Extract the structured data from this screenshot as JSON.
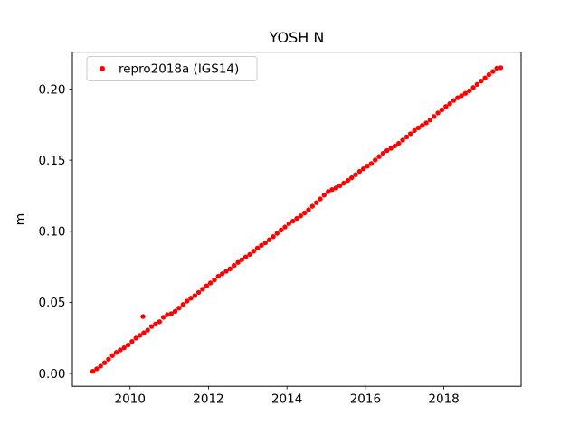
{
  "chart_data": {
    "type": "scatter",
    "title": "YOSH N",
    "xlabel": "",
    "ylabel": "m",
    "grid": false,
    "legend_position": "upper-left",
    "legend": [
      {
        "label": "repro2018a (IGS14)",
        "marker": "dot",
        "color": "#ff0000"
      }
    ],
    "marker_color": "#ff0000",
    "xlim": [
      2008.53,
      2019.97
    ],
    "ylim": [
      -0.009,
      0.226
    ],
    "xticks": [
      2010,
      2012,
      2014,
      2016,
      2018
    ],
    "yticks": [
      0,
      0.05,
      0.1,
      0.15,
      0.2
    ],
    "ytick_labels": [
      "0.00",
      "0.05",
      "0.10",
      "0.15",
      "0.20"
    ],
    "series": [
      {
        "name": "repro2018a (IGS14)",
        "x": [
          2009.05,
          2009.15,
          2009.25,
          2009.35,
          2009.45,
          2009.55,
          2009.65,
          2009.75,
          2009.85,
          2009.95,
          2010.05,
          2010.15,
          2010.25,
          2010.35,
          2010.45,
          2010.55,
          2010.65,
          2010.75,
          2010.85,
          2010.95,
          2011.05,
          2011.15,
          2011.25,
          2011.35,
          2011.45,
          2011.55,
          2011.65,
          2011.75,
          2011.85,
          2011.95,
          2012.05,
          2012.15,
          2012.25,
          2012.35,
          2012.45,
          2012.55,
          2012.65,
          2012.75,
          2012.85,
          2012.95,
          2013.05,
          2013.15,
          2013.25,
          2013.35,
          2013.45,
          2013.55,
          2013.65,
          2013.75,
          2013.85,
          2013.95,
          2014.05,
          2014.15,
          2014.25,
          2014.35,
          2014.45,
          2014.55,
          2014.65,
          2014.75,
          2014.85,
          2014.95,
          2015.05,
          2015.15,
          2015.25,
          2015.35,
          2015.45,
          2015.55,
          2015.65,
          2015.75,
          2015.85,
          2015.95,
          2016.05,
          2016.15,
          2016.25,
          2016.35,
          2016.45,
          2016.55,
          2016.65,
          2016.75,
          2016.85,
          2016.95,
          2017.05,
          2017.15,
          2017.25,
          2017.35,
          2017.45,
          2017.55,
          2017.65,
          2017.75,
          2017.85,
          2017.95,
          2018.05,
          2018.15,
          2018.25,
          2018.35,
          2018.45,
          2018.55,
          2018.65,
          2018.75,
          2018.85,
          2018.95,
          2019.05,
          2019.15,
          2019.25,
          2019.35,
          2019.45
        ],
        "y": [
          0.0015,
          0.0033,
          0.0052,
          0.0075,
          0.01,
          0.0126,
          0.0148,
          0.0165,
          0.0181,
          0.02,
          0.0225,
          0.0249,
          0.0268,
          0.0286,
          0.0305,
          0.033,
          0.0348,
          0.0364,
          0.0395,
          0.0413,
          0.042,
          0.0437,
          0.046,
          0.0485,
          0.0508,
          0.0529,
          0.0547,
          0.057,
          0.0593,
          0.0616,
          0.0636,
          0.0658,
          0.0683,
          0.0701,
          0.0718,
          0.0736,
          0.0759,
          0.0781,
          0.08,
          0.0819,
          0.0837,
          0.086,
          0.0882,
          0.0901,
          0.0919,
          0.094,
          0.0962,
          0.0985,
          0.1008,
          0.103,
          0.1053,
          0.1071,
          0.109,
          0.1108,
          0.1129,
          0.1151,
          0.1176,
          0.1201,
          0.1227,
          0.1254,
          0.1278,
          0.1293,
          0.1305,
          0.132,
          0.1338,
          0.1357,
          0.1376,
          0.1398,
          0.1421,
          0.1439,
          0.1458,
          0.1476,
          0.1501,
          0.1525,
          0.1548,
          0.1567,
          0.1583,
          0.16,
          0.1618,
          0.1641,
          0.1663,
          0.1686,
          0.1708,
          0.1727,
          0.1744,
          0.1762,
          0.1783,
          0.1807,
          0.1832,
          0.1854,
          0.1877,
          0.1897,
          0.192,
          0.1939,
          0.1953,
          0.197,
          0.1988,
          0.2011,
          0.2033,
          0.2056,
          0.2078,
          0.2101,
          0.2123,
          0.2146,
          0.215
        ]
      }
    ],
    "outlier_points": [
      {
        "x": 2010.33,
        "y": 0.04
      }
    ]
  }
}
